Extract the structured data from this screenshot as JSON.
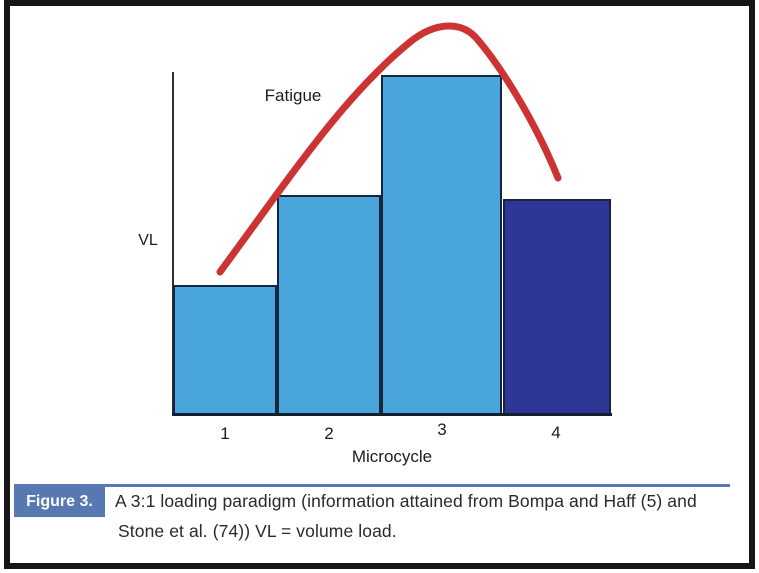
{
  "chart_data": {
    "type": "bar",
    "title": "",
    "xlabel": "Microcycle",
    "ylabel": "VL",
    "annotation": "Fatigue",
    "categories": [
      "1",
      "2",
      "3",
      "4"
    ],
    "values": [
      38,
      64,
      99,
      63
    ],
    "value_note": "relative volume load estimated from bar heights; no numeric scale shown on axis",
    "bar_colors": [
      "#4aa5da",
      "#4aa5da",
      "#4aa5da",
      "#2e3795"
    ],
    "curve": {
      "name": "Fatigue",
      "color": "#cc3333",
      "shape": "rises across microcycles 1-3, peaks above microcycle 3, falls across microcycle 4"
    },
    "ylim": [
      0,
      100
    ],
    "grid": false,
    "legend": false
  },
  "caption": {
    "label": "Figure 3.",
    "line1": "A 3:1 loading paradigm (information attained from Bompa and Haff (5) and",
    "line2": "Stone et al. (74)) VL = volume load."
  },
  "colors": {
    "caption_accent": "#5878b2",
    "bar_light_blue": "#4aa5da",
    "bar_dark_blue": "#2e3795",
    "curve_red": "#cc3333",
    "frame_black": "#161616"
  }
}
